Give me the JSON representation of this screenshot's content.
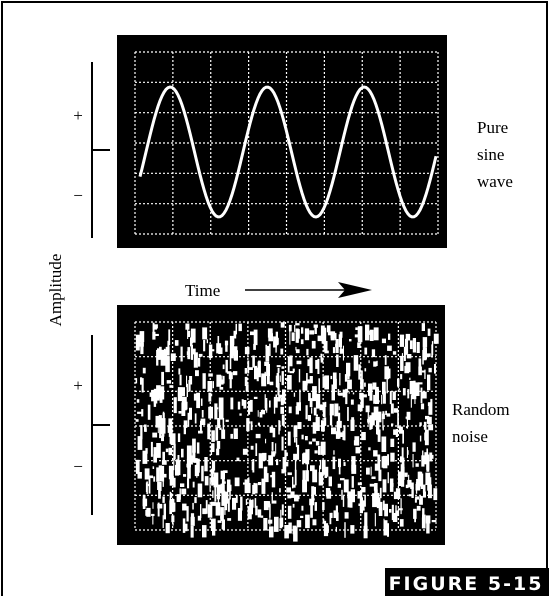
{
  "top_panel": {
    "plus": "+",
    "minus": "−",
    "label": [
      "Pure",
      "sine",
      "wave"
    ]
  },
  "axis": {
    "y_label": "Amplitude",
    "x_label": "Time"
  },
  "bottom_panel": {
    "plus": "+",
    "minus": "−",
    "label": [
      "Random",
      "noise"
    ]
  },
  "figure_label": "FIGURE 5-15"
}
